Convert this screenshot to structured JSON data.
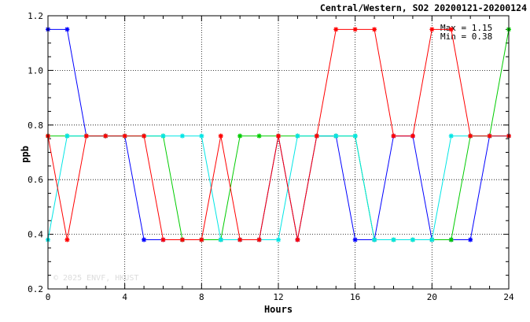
{
  "chart_data": {
    "type": "line",
    "title": "Central/Western, SO2 20200121-20200124",
    "xlabel": "Hours",
    "ylabel": "ppb",
    "xlim": [
      0,
      24
    ],
    "ylim": [
      0.2,
      1.2
    ],
    "xticks": [
      0,
      4,
      8,
      12,
      16,
      20,
      24
    ],
    "yticks": [
      0.2,
      0.4,
      0.6,
      0.8,
      1.0,
      1.2
    ],
    "ytick_labels": [
      "0.2",
      "0.4",
      "0.6",
      "0.8",
      "1.0",
      "1.2"
    ],
    "grid": true,
    "stats": {
      "max": "Max = 1.15",
      "min": "Min = 0.38"
    },
    "watermark": "© 2025  ENVF, HKUST",
    "x": [
      0,
      1,
      2,
      3,
      4,
      5,
      6,
      7,
      8,
      9,
      10,
      11,
      12,
      13,
      14,
      15,
      16,
      17,
      18,
      19,
      20,
      21,
      22,
      23,
      24
    ],
    "series": [
      {
        "color": "#0000ff",
        "values": [
          1.15,
          1.15,
          0.76,
          0.76,
          0.76,
          0.38,
          0.38,
          0.38,
          0.38,
          0.38,
          0.38,
          0.38,
          0.76,
          0.38,
          0.76,
          0.76,
          0.38,
          0.38,
          0.76,
          0.76,
          0.38,
          0.38,
          0.38,
          0.76,
          0.76
        ]
      },
      {
        "color": "#00cc00",
        "values": [
          0.76,
          0.76,
          0.76,
          0.76,
          0.76,
          0.76,
          0.76,
          0.38,
          0.38,
          0.38,
          0.76,
          0.76,
          0.76,
          0.76,
          0.76,
          0.76,
          0.76,
          0.38,
          0.38,
          0.38,
          0.38,
          0.38,
          0.76,
          0.76,
          1.15
        ]
      },
      {
        "color": "#00e5e5",
        "values": [
          0.38,
          0.76,
          0.76,
          0.76,
          0.76,
          0.76,
          0.76,
          0.76,
          0.76,
          0.38,
          0.38,
          0.38,
          0.38,
          0.76,
          0.76,
          0.76,
          0.76,
          0.38,
          0.38,
          0.38,
          0.38,
          0.76,
          0.76,
          0.76,
          0.76
        ]
      },
      {
        "color": "#ff0000",
        "values": [
          0.76,
          0.38,
          0.76,
          0.76,
          0.76,
          0.76,
          0.38,
          0.38,
          0.38,
          0.76,
          0.38,
          0.38,
          0.76,
          0.38,
          0.76,
          1.15,
          1.15,
          1.15,
          0.76,
          0.76,
          1.15,
          1.15,
          0.76,
          0.76,
          0.76
        ]
      }
    ]
  }
}
